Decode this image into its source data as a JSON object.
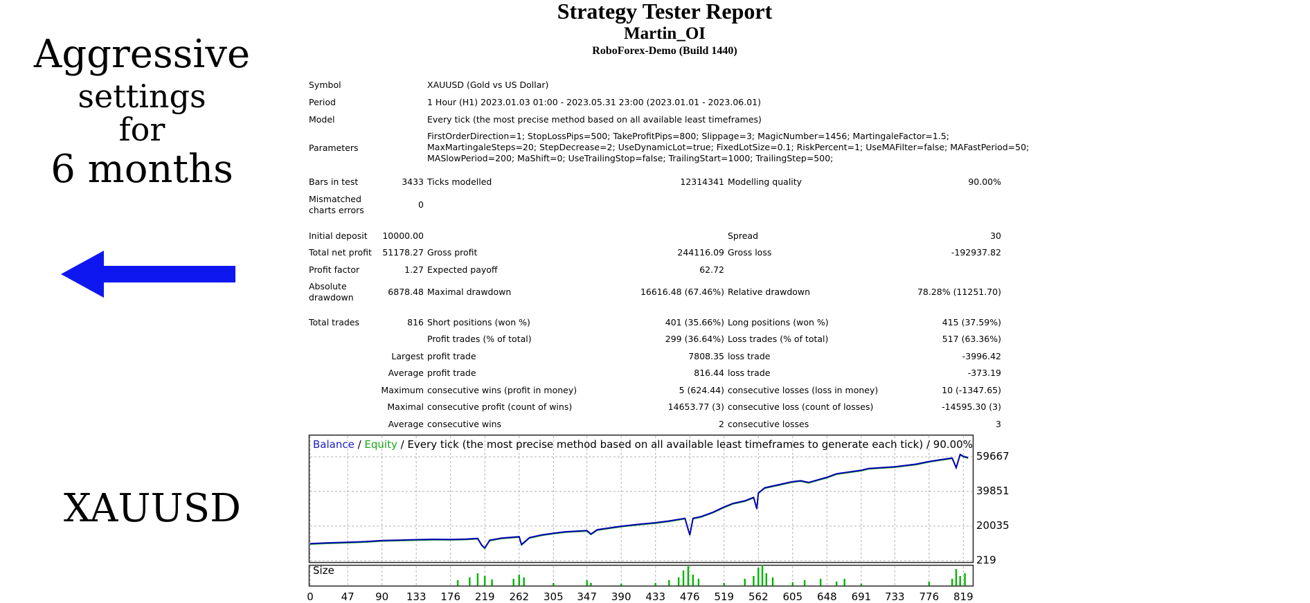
{
  "promo": {
    "line1": "Aggressive",
    "line2": "settings",
    "line3": "for",
    "line4": "6 months",
    "symbol": "XAUUSD",
    "arrow_color": "#0f17f0"
  },
  "report": {
    "title": "Strategy Tester Report",
    "expert": "Martin_OI",
    "build": "RoboForex-Demo (Build 1440)",
    "rows": {
      "symbol_label": "Symbol",
      "symbol_value": "XAUUSD (Gold vs US Dollar)",
      "period_label": "Period",
      "period_value": "1 Hour (H1) 2023.01.03 01:00 - 2023.05.31 23:00 (2023.01.01 - 2023.06.01)",
      "model_label": "Model",
      "model_value": "Every tick (the most precise method based on all available least timeframes)",
      "params_label": "Parameters",
      "params_line1": "FirstOrderDirection=1; StopLossPips=500; TakeProfitPips=800; Slippage=3; MagicNumber=1456; MartingaleFactor=1.5;",
      "params_line2": "MaxMartingaleSteps=20; StepDecrease=2; UseDynamicLot=true; FixedLotSize=0.1; RiskPercent=1; UseMAFilter=false; MAFastPeriod=50;",
      "params_line3": "MASlowPeriod=200; MaShift=0; UseTrailingStop=false; TrailingStart=1000; TrailingStep=500;",
      "bars_label": "Bars in test",
      "bars_value": "3433",
      "ticks_label": "Ticks modelled",
      "ticks_value": "12314341",
      "quality_label": "Modelling quality",
      "quality_value": "90.00%",
      "mismatch_label_1": "Mismatched",
      "mismatch_label_2": "charts errors",
      "mismatch_value": "0",
      "deposit_label": "Initial deposit",
      "deposit_value": "10000.00",
      "spread_label": "Spread",
      "spread_value": "30",
      "netprofit_label": "Total net profit",
      "netprofit_value": "51178.27",
      "grossprofit_label": "Gross profit",
      "grossprofit_value": "244116.09",
      "grossloss_label": "Gross loss",
      "grossloss_value": "-192937.82",
      "pf_label": "Profit factor",
      "pf_value": "1.27",
      "payoff_label": "Expected payoff",
      "payoff_value": "62.72",
      "absdd_label_1": "Absolute",
      "absdd_label_2": "drawdown",
      "absdd_value": "6878.48",
      "maxdd_label": "Maximal drawdown",
      "maxdd_value": "16616.48 (67.46%)",
      "reldd_label": "Relative drawdown",
      "reldd_value": "78.28% (11251.70)",
      "trades_label": "Total trades",
      "trades_value": "816",
      "short_label": "Short positions (won %)",
      "short_value": "401 (35.66%)",
      "long_label": "Long positions (won %)",
      "long_value": "415 (37.59%)",
      "profittrades_label": "Profit trades (% of total)",
      "profittrades_value": "299 (36.64%)",
      "losstrades_label": "Loss trades (% of total)",
      "losstrades_value": "517 (63.36%)",
      "largest_label": "Largest",
      "largest_profit_label": "profit trade",
      "largest_profit_value": "7808.35",
      "largest_loss_label": "loss trade",
      "largest_loss_value": "-3996.42",
      "average_label": "Average",
      "average_profit_label": "profit trade",
      "average_profit_value": "816.44",
      "average_loss_label": "loss trade",
      "average_loss_value": "-373.19",
      "maximum_label": "Maximum",
      "max_wins_label": "consecutive wins (profit in money)",
      "max_wins_value": "5 (624.44)",
      "max_losses_label": "consecutive losses (loss in money)",
      "max_losses_value": "10 (-1347.65)",
      "maximal_label": "Maximal",
      "maximal_profit_label": "consecutive profit (count of wins)",
      "maximal_profit_value": "14653.77 (3)",
      "maximal_loss_label": "consecutive loss (count of losses)",
      "maximal_loss_value": "-14595.30 (3)",
      "avg2_label": "Average",
      "avg_wins_label": "consecutive wins",
      "avg_wins_value": "2",
      "avg_losses_label": "consecutive losses",
      "avg_losses_value": "3"
    }
  },
  "chart_data": {
    "type": "line",
    "legend": {
      "balance": "Balance",
      "sep1": " / ",
      "equity": "Equity",
      "rest": " / Every tick (the most precise method based on all available least timeframes to generate each tick) / 90.00%"
    },
    "size_label": "Size",
    "y_ticks": [
      "59667",
      "39851",
      "20035",
      "219"
    ],
    "y_tick_values": [
      59667,
      39851,
      20035,
      219
    ],
    "x_ticks": [
      "0",
      "47",
      "90",
      "133",
      "176",
      "219",
      "262",
      "305",
      "347",
      "390",
      "433",
      "476",
      "519",
      "562",
      "605",
      "648",
      "691",
      "733",
      "776",
      "819"
    ],
    "x_tick_values": [
      0,
      47,
      90,
      133,
      176,
      219,
      262,
      305,
      347,
      390,
      433,
      476,
      519,
      562,
      605,
      648,
      691,
      733,
      776,
      819
    ],
    "ylim": [
      219,
      62000
    ],
    "xlim": [
      0,
      830
    ],
    "grid": true,
    "colors": {
      "balance": "#0000b4",
      "equity": "#19a819",
      "size": "#00b400",
      "grid": "#b0b0b0"
    },
    "series": [
      {
        "name": "Balance",
        "x": [
          0,
          20,
          47,
          70,
          90,
          110,
          133,
          155,
          176,
          195,
          210,
          215,
          219,
          225,
          240,
          262,
          265,
          275,
          290,
          305,
          320,
          347,
          352,
          360,
          375,
          390,
          410,
          433,
          450,
          470,
          474,
          476,
          480,
          490,
          505,
          519,
          530,
          545,
          556,
          560,
          562,
          570,
          580,
          590,
          600,
          605,
          615,
          625,
          640,
          648,
          660,
          691,
          700,
          733,
          760,
          776,
          790,
          805,
          810,
          815,
          819,
          825
        ],
        "y": [
          10000,
          10400,
          10800,
          11200,
          11800,
          12000,
          12300,
          12500,
          12400,
          12600,
          13000,
          9200,
          7500,
          12000,
          13200,
          14000,
          9500,
          13500,
          15000,
          16000,
          16800,
          17500,
          15500,
          18000,
          19000,
          20000,
          21000,
          22000,
          23000,
          24500,
          18000,
          15000,
          24500,
          25500,
          28000,
          31000,
          33000,
          34500,
          36500,
          30000,
          39000,
          42000,
          43000,
          44000,
          45000,
          45500,
          46000,
          45000,
          47000,
          48000,
          50000,
          52000,
          53000,
          54000,
          55500,
          57000,
          58000,
          59000,
          53500,
          61000,
          60000,
          59200
        ]
      }
    ],
    "size_bars": [
      {
        "x": 185,
        "h": 8
      },
      {
        "x": 200,
        "h": 12
      },
      {
        "x": 210,
        "h": 18
      },
      {
        "x": 219,
        "h": 14
      },
      {
        "x": 228,
        "h": 9
      },
      {
        "x": 255,
        "h": 10
      },
      {
        "x": 262,
        "h": 16
      },
      {
        "x": 268,
        "h": 12
      },
      {
        "x": 305,
        "h": 4
      },
      {
        "x": 347,
        "h": 8
      },
      {
        "x": 352,
        "h": 4
      },
      {
        "x": 390,
        "h": 3
      },
      {
        "x": 433,
        "h": 4
      },
      {
        "x": 450,
        "h": 8
      },
      {
        "x": 462,
        "h": 12
      },
      {
        "x": 468,
        "h": 22
      },
      {
        "x": 474,
        "h": 28
      },
      {
        "x": 480,
        "h": 16
      },
      {
        "x": 487,
        "h": 10
      },
      {
        "x": 519,
        "h": 4
      },
      {
        "x": 545,
        "h": 10
      },
      {
        "x": 556,
        "h": 14
      },
      {
        "x": 562,
        "h": 26
      },
      {
        "x": 567,
        "h": 30
      },
      {
        "x": 572,
        "h": 18
      },
      {
        "x": 580,
        "h": 12
      },
      {
        "x": 605,
        "h": 5
      },
      {
        "x": 620,
        "h": 8
      },
      {
        "x": 640,
        "h": 10
      },
      {
        "x": 660,
        "h": 6
      },
      {
        "x": 670,
        "h": 10
      },
      {
        "x": 691,
        "h": 3
      },
      {
        "x": 776,
        "h": 6
      },
      {
        "x": 805,
        "h": 10
      },
      {
        "x": 810,
        "h": 24
      },
      {
        "x": 815,
        "h": 14
      },
      {
        "x": 821,
        "h": 18
      }
    ]
  }
}
